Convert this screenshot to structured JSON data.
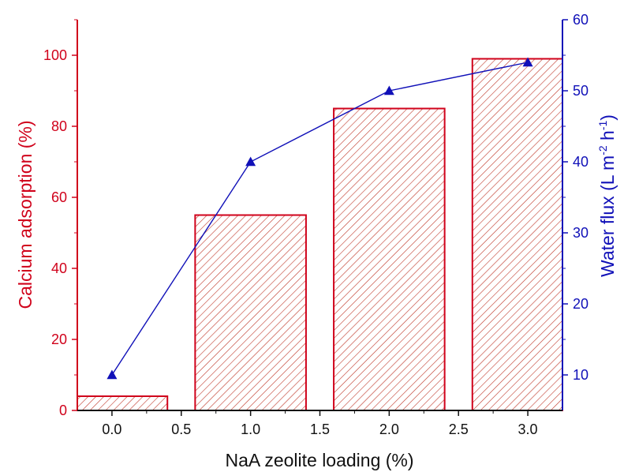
{
  "chart_data": {
    "type": "bar",
    "xlabel": "NaA zeolite loading (%)",
    "ylabel_left": "Calcium adsorption (%)",
    "ylabel_right": {
      "prefix": "Water flux (L m",
      "sup1": "-2",
      "middle": " h",
      "sup2": "-1",
      "suffix": ")"
    },
    "x_ticks": [
      "0.0",
      "0.5",
      "1.0",
      "1.5",
      "2.0",
      "2.5",
      "3.0"
    ],
    "y_left_ticks": [
      "0",
      "20",
      "40",
      "60",
      "80",
      "100"
    ],
    "y_right_ticks": [
      "10",
      "20",
      "30",
      "40",
      "50",
      "60"
    ],
    "xlim": [
      -0.25,
      3.25
    ],
    "ylim_left": [
      0,
      110
    ],
    "ylim_right": [
      5,
      60
    ],
    "bars": {
      "x": [
        0.0,
        1.0,
        2.0,
        3.0
      ],
      "values": [
        4,
        55,
        85,
        99
      ],
      "width": 0.8,
      "color": "#d0021b",
      "pattern": "diagonal-hatch"
    },
    "line": {
      "x": [
        0.0,
        1.0,
        2.0,
        3.0
      ],
      "values": [
        10,
        40,
        50,
        54
      ],
      "color": "#1010b8",
      "marker": "triangle"
    },
    "left_axis_color": "#d0021b",
    "right_axis_color": "#1010b8",
    "grid": false
  }
}
